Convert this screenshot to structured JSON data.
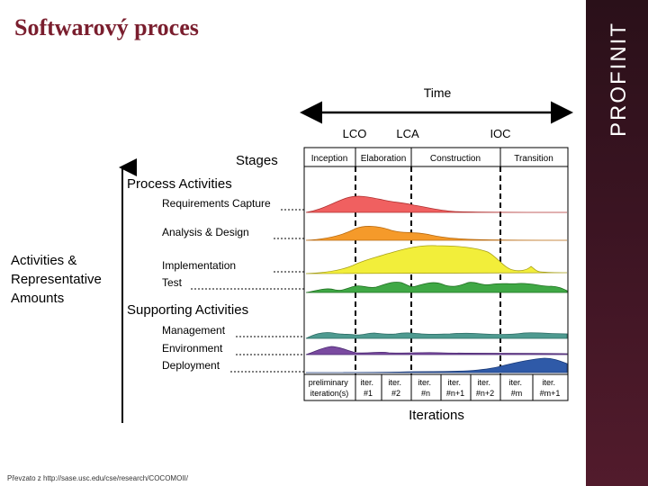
{
  "slide": {
    "title": "Softwarový proces",
    "footnote": "Převzato z http://sase.usc.edu/cse/research/COCOMOII/"
  },
  "brand": {
    "name": "PROFINIT",
    "bar_color": "#3b1422"
  },
  "diagram": {
    "time_label": "Time",
    "milestones": [
      "LCO",
      "LCA",
      "IOC"
    ],
    "stages_label": "Stages",
    "phases": [
      "Inception",
      "Elaboration",
      "Construction",
      "Transition"
    ],
    "process_activities_label": "Process Activities",
    "process_activities": [
      "Requirements Capture",
      "Analysis & Design",
      "Implementation",
      "Test"
    ],
    "supporting_activities_label": "Supporting Activities",
    "supporting_activities": [
      "Management",
      "Environment",
      "Deployment"
    ],
    "y_axis_label": [
      "Activities &",
      "Representative",
      "Amounts"
    ],
    "iterations_label": "Iterations",
    "iterations": [
      [
        "preliminary",
        "iteration(s)"
      ],
      [
        "iter.",
        "#1"
      ],
      [
        "iter.",
        "#2"
      ],
      [
        "iter.",
        "#n"
      ],
      [
        "iter.",
        "#n+1"
      ],
      [
        "iter.",
        "#n+2"
      ],
      [
        "iter.",
        "#m"
      ],
      [
        "iter.",
        "#m+1"
      ]
    ],
    "colors": {
      "requirements": "#f06060",
      "analysis": "#f59a2a",
      "implementation": "#f2ee3a",
      "test": "#3fa845",
      "management": "#4e9a90",
      "environment": "#7a4aa0",
      "deployment": "#2f5aa8"
    }
  }
}
